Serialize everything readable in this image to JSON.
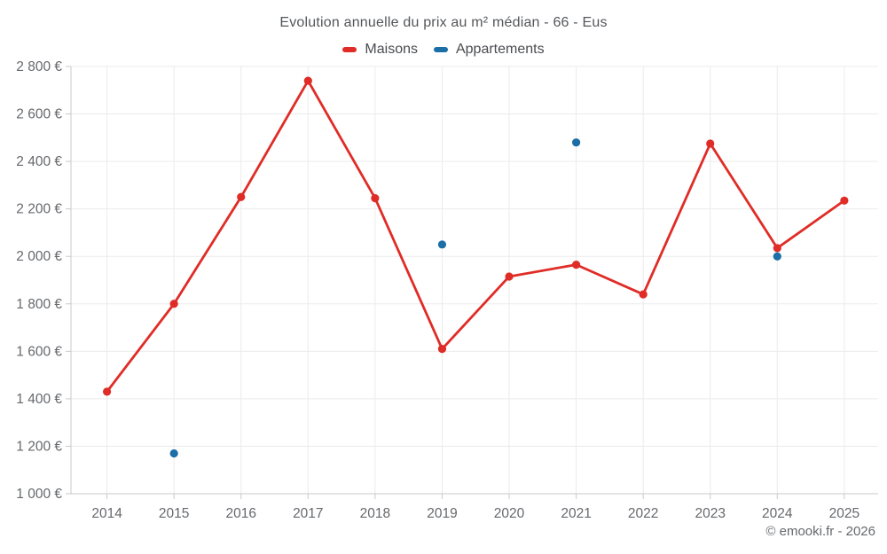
{
  "footer": {
    "credit": "© emooki.fr - 2026"
  },
  "chart_data": {
    "type": "line",
    "title": "Evolution annuelle du prix au m² médian - 66 - Eus",
    "x": [
      2014,
      2015,
      2016,
      2017,
      2018,
      2019,
      2020,
      2021,
      2022,
      2023,
      2024,
      2025
    ],
    "series": [
      {
        "name": "Maisons",
        "color": "#e02c26",
        "draw_line": true,
        "values": [
          1430,
          1800,
          2250,
          2740,
          2245,
          1610,
          1915,
          1965,
          1840,
          2475,
          2035,
          2235
        ]
      },
      {
        "name": "Appartements",
        "color": "#1c6fa6",
        "draw_line": false,
        "values": [
          null,
          1170,
          null,
          null,
          null,
          2050,
          null,
          2480,
          null,
          null,
          2000,
          null
        ]
      }
    ],
    "ylim": [
      1000,
      2800
    ],
    "ytick_step": 200,
    "ylabel_suffix": " €",
    "grid": true,
    "legend_position": "top"
  }
}
